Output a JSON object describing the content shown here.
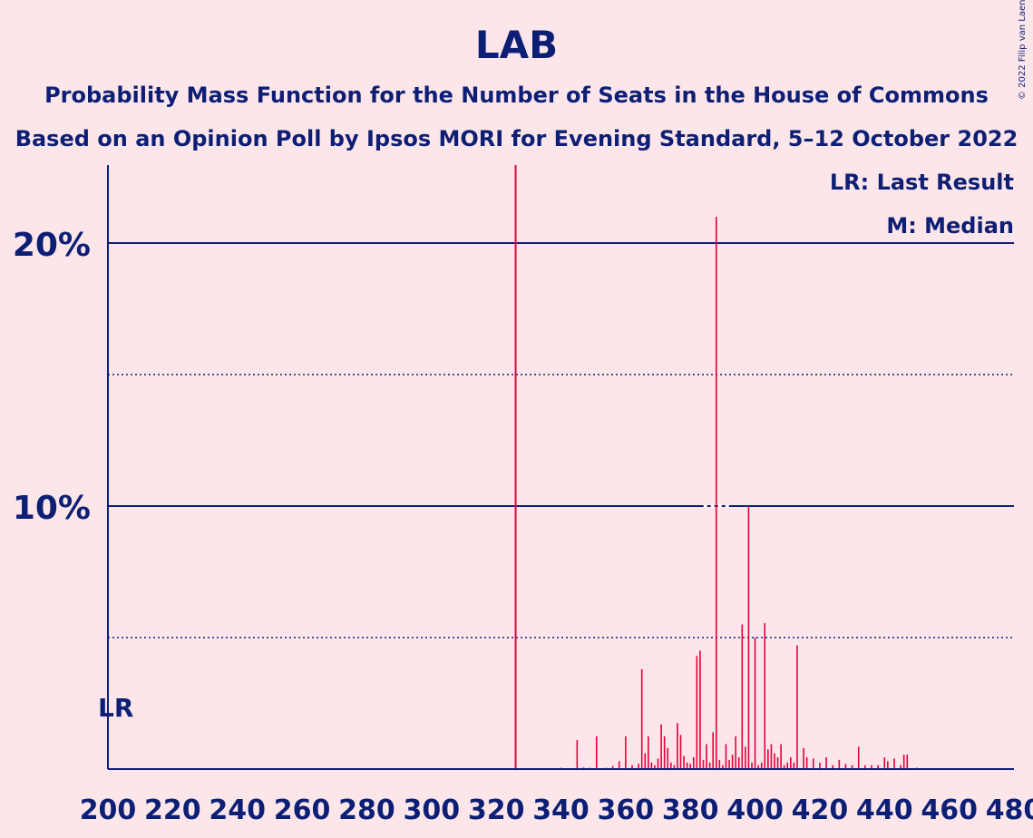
{
  "title": "LAB",
  "subtitle1": "Probability Mass Function for the Number of Seats in the House of Commons",
  "subtitle2": "Based on an Opinion Poll by Ipsos MORI for Evening Standard, 5–12 October 2022",
  "copyright": "© 2022 Filip van Laenen",
  "colors": {
    "background": "#fde6ea",
    "text": "#0d1f75",
    "bar": "#e4003b",
    "last_result_line": "#e4003b"
  },
  "chart_data": {
    "type": "bar",
    "xlabel": "",
    "ylabel": "",
    "xlim": [
      200,
      480
    ],
    "ylim": [
      0,
      0.23
    ],
    "x_ticks": [
      200,
      220,
      240,
      260,
      280,
      300,
      320,
      340,
      360,
      380,
      400,
      420,
      440,
      460,
      480
    ],
    "x_tick_labels": [
      "200",
      "220",
      "240",
      "260",
      "280",
      "300",
      "320",
      "340",
      "360",
      "380",
      "400",
      "420",
      "440",
      "460",
      "480"
    ],
    "y_ticks_labeled": [
      0.1,
      0.2
    ],
    "y_tick_labels": [
      "10%",
      "20%"
    ],
    "y_ticks_dotted": [
      0.05,
      0.15
    ],
    "last_result": 326,
    "median": 388,
    "legend": {
      "last_result": "LR: Last Result",
      "median": "M: Median",
      "position": "top-right"
    },
    "lr_label": "LR",
    "grid": true,
    "x": [
      333,
      340,
      345,
      347,
      349,
      351,
      354,
      356,
      358,
      360,
      362,
      364,
      365,
      366,
      367,
      368,
      369,
      370,
      371,
      372,
      373,
      374,
      375,
      376,
      377,
      378,
      379,
      380,
      381,
      382,
      383,
      384,
      385,
      386,
      387,
      388,
      389,
      390,
      391,
      392,
      393,
      394,
      395,
      396,
      397,
      398,
      399,
      400,
      401,
      402,
      403,
      404,
      405,
      406,
      407,
      408,
      409,
      410,
      411,
      412,
      413,
      415,
      416,
      418,
      420,
      422,
      424,
      426,
      428,
      430,
      432,
      434,
      436,
      438,
      440,
      441,
      443,
      445,
      446,
      447,
      450,
      455
    ],
    "values": [
      0.0003,
      0.0005,
      0.011,
      0.0006,
      0.0005,
      0.0125,
      0.0005,
      0.0012,
      0.003,
      0.0125,
      0.0015,
      0.002,
      0.038,
      0.006,
      0.0125,
      0.0025,
      0.0015,
      0.004,
      0.017,
      0.0125,
      0.008,
      0.0025,
      0.0015,
      0.0175,
      0.013,
      0.005,
      0.0025,
      0.002,
      0.0045,
      0.043,
      0.045,
      0.0035,
      0.0095,
      0.0025,
      0.014,
      0.21,
      0.0035,
      0.0015,
      0.0095,
      0.0035,
      0.0055,
      0.0125,
      0.0045,
      0.055,
      0.0085,
      0.1,
      0.0025,
      0.05,
      0.0015,
      0.0025,
      0.0555,
      0.0075,
      0.0095,
      0.006,
      0.0045,
      0.0095,
      0.0015,
      0.0025,
      0.0045,
      0.0025,
      0.047,
      0.008,
      0.0045,
      0.004,
      0.0025,
      0.0045,
      0.0015,
      0.0035,
      0.002,
      0.0015,
      0.0085,
      0.0015,
      0.0015,
      0.0015,
      0.0045,
      0.003,
      0.004,
      0.0015,
      0.0055,
      0.0055,
      0.0005,
      0.0003
    ]
  }
}
